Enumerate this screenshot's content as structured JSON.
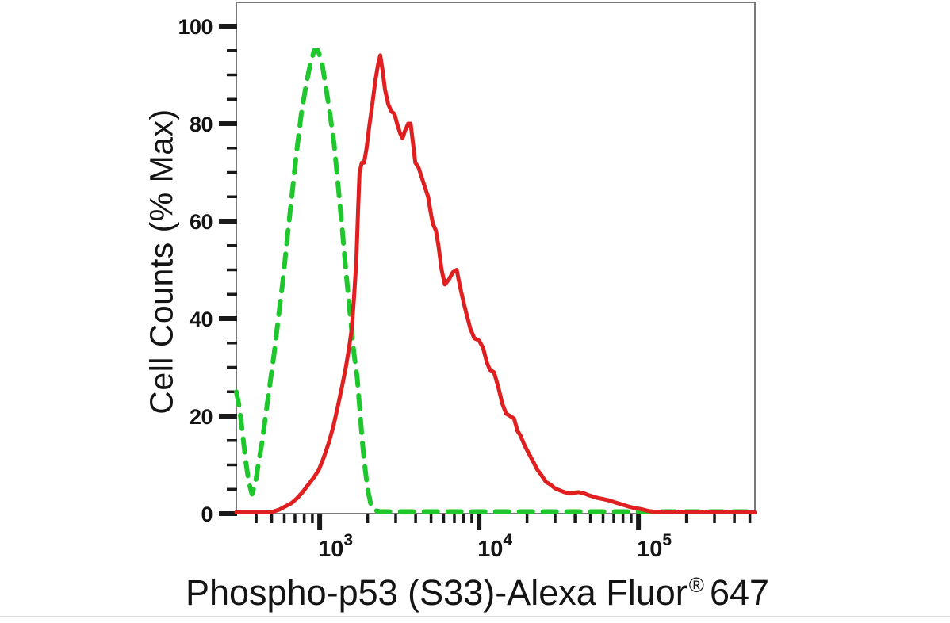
{
  "chart_data": {
    "type": "line",
    "subtype": "flow-cytometry-overlay-histogram",
    "title": "",
    "xlabel": "Phospho-p53 (S33)-Alexa Fluor® 647",
    "xlabel_parts": {
      "main": "Phospho-p53 (S33)-Alexa Fluor",
      "registered_mark": "®",
      "suffix": "647"
    },
    "ylabel": "Cell Counts (% Max)",
    "x_scale": "log10",
    "x_range": [
      300,
      538000
    ],
    "ylim": [
      0,
      105
    ],
    "grid": false,
    "legend_position": "none",
    "colors": {
      "background": "#ffffff",
      "frame": "#7a7a7a",
      "ticks": "#1a1a1a",
      "text": "#141414"
    },
    "y_axis": {
      "major_ticks": [
        0,
        20,
        40,
        60,
        80,
        100
      ],
      "minor_ticks": [
        5,
        10,
        15,
        25,
        30,
        35,
        45,
        50,
        55,
        65,
        70,
        75,
        85,
        90,
        95
      ]
    },
    "x_axis": {
      "major_ticks": [
        {
          "value": 1000,
          "base": "10",
          "exponent": "3"
        },
        {
          "value": 10000,
          "base": "10",
          "exponent": "4"
        },
        {
          "value": 100000,
          "base": "10",
          "exponent": "5"
        }
      ],
      "minor_ticks": [
        400,
        500,
        600,
        700,
        800,
        900,
        2000,
        3000,
        4000,
        5000,
        6000,
        7000,
        8000,
        9000,
        20000,
        30000,
        40000,
        50000,
        60000,
        70000,
        80000,
        90000,
        200000,
        300000,
        400000,
        500000
      ]
    },
    "series": [
      {
        "id": "control-green-dashed",
        "color": "#1ec72b",
        "line_style": "dashed",
        "line_width": 6,
        "peak": {
          "x": 950,
          "y": 95
        },
        "points": [
          [
            300,
            25
          ],
          [
            313,
            22
          ],
          [
            327,
            17
          ],
          [
            343,
            11
          ],
          [
            359,
            6.5
          ],
          [
            376,
            4
          ],
          [
            394,
            6
          ],
          [
            412,
            10
          ],
          [
            437,
            15
          ],
          [
            462,
            21
          ],
          [
            490,
            27
          ],
          [
            519,
            33
          ],
          [
            550,
            40
          ],
          [
            589,
            48
          ],
          [
            624,
            56
          ],
          [
            668,
            65
          ],
          [
            716,
            74
          ],
          [
            767,
            82
          ],
          [
            822,
            88
          ],
          [
            871,
            92
          ],
          [
            923,
            95
          ],
          [
            977,
            95
          ],
          [
            1040,
            92
          ],
          [
            1100,
            87
          ],
          [
            1160,
            82
          ],
          [
            1230,
            76
          ],
          [
            1300,
            68
          ],
          [
            1380,
            59
          ],
          [
            1460,
            50
          ],
          [
            1550,
            41
          ],
          [
            1640,
            33
          ],
          [
            1720,
            28
          ],
          [
            1780,
            22
          ],
          [
            1840,
            16
          ],
          [
            1900,
            11
          ],
          [
            2000,
            5
          ],
          [
            2090,
            2
          ],
          [
            2190,
            0.7
          ],
          [
            2400,
            0.4
          ],
          [
            538000,
            0.4
          ]
        ]
      },
      {
        "id": "stained-red-solid",
        "color": "#e02020",
        "line_style": "solid",
        "line_width": 5,
        "peak": {
          "x": 2400,
          "y": 94
        },
        "points": [
          [
            300,
            0.3
          ],
          [
            496,
            0.3
          ],
          [
            556,
            0.8
          ],
          [
            610,
            1.5
          ],
          [
            668,
            2.2
          ],
          [
            724,
            3.2
          ],
          [
            785,
            4.5
          ],
          [
            851,
            6
          ],
          [
            923,
            7.5
          ],
          [
            989,
            9
          ],
          [
            1060,
            11.5
          ],
          [
            1140,
            14.5
          ],
          [
            1220,
            18
          ],
          [
            1300,
            22
          ],
          [
            1380,
            26
          ],
          [
            1460,
            30
          ],
          [
            1530,
            34
          ],
          [
            1590,
            38
          ],
          [
            1640,
            44
          ],
          [
            1700,
            52
          ],
          [
            1740,
            62
          ],
          [
            1780,
            70
          ],
          [
            1840,
            72
          ],
          [
            1900,
            72
          ],
          [
            1970,
            75
          ],
          [
            2040,
            79
          ],
          [
            2140,
            84
          ],
          [
            2240,
            89
          ],
          [
            2320,
            92
          ],
          [
            2400,
            94
          ],
          [
            2480,
            91
          ],
          [
            2570,
            87
          ],
          [
            2690,
            84
          ],
          [
            2820,
            82.5
          ],
          [
            2950,
            82
          ],
          [
            3060,
            80
          ],
          [
            3200,
            78
          ],
          [
            3310,
            77
          ],
          [
            3430,
            78.5
          ],
          [
            3590,
            80
          ],
          [
            3720,
            80
          ],
          [
            3850,
            76
          ],
          [
            3980,
            72
          ],
          [
            4170,
            71
          ],
          [
            4370,
            69
          ],
          [
            4570,
            67
          ],
          [
            4790,
            65
          ],
          [
            4960,
            62
          ],
          [
            5130,
            59.5
          ],
          [
            5370,
            58
          ],
          [
            5560,
            55
          ],
          [
            5820,
            50
          ],
          [
            6100,
            47
          ],
          [
            6460,
            48
          ],
          [
            6840,
            49.5
          ],
          [
            7240,
            50
          ],
          [
            7670,
            46
          ],
          [
            8040,
            43
          ],
          [
            8410,
            40.5
          ],
          [
            8810,
            38
          ],
          [
            9330,
            36
          ],
          [
            10000,
            35.5
          ],
          [
            10600,
            34
          ],
          [
            11200,
            31
          ],
          [
            11700,
            29.5
          ],
          [
            12400,
            29
          ],
          [
            13200,
            26
          ],
          [
            14000,
            22.5
          ],
          [
            14800,
            20.5
          ],
          [
            15700,
            20
          ],
          [
            16600,
            19.5
          ],
          [
            17400,
            17
          ],
          [
            18200,
            16
          ],
          [
            19300,
            14
          ],
          [
            20400,
            12.5
          ],
          [
            21600,
            11
          ],
          [
            23200,
            9
          ],
          [
            24500,
            8
          ],
          [
            26300,
            6.5
          ],
          [
            27900,
            6
          ],
          [
            29900,
            5.2
          ],
          [
            32000,
            4.8
          ],
          [
            34300,
            4.4
          ],
          [
            36700,
            4.2
          ],
          [
            39400,
            4.3
          ],
          [
            42200,
            4.4
          ],
          [
            45200,
            4.2
          ],
          [
            48400,
            3.8
          ],
          [
            51900,
            3.5
          ],
          [
            55600,
            3.2
          ],
          [
            59600,
            3
          ],
          [
            63800,
            2.8
          ],
          [
            68400,
            2.5
          ],
          [
            73300,
            2.2
          ],
          [
            78500,
            1.9
          ],
          [
            84100,
            1.6
          ],
          [
            90200,
            1.3
          ],
          [
            96600,
            1.1
          ],
          [
            105000,
            0.9
          ],
          [
            114000,
            0.6
          ],
          [
            123000,
            0.4
          ],
          [
            136000,
            0.3
          ],
          [
            162000,
            0.25
          ],
          [
            538000,
            0.25
          ]
        ]
      }
    ]
  }
}
